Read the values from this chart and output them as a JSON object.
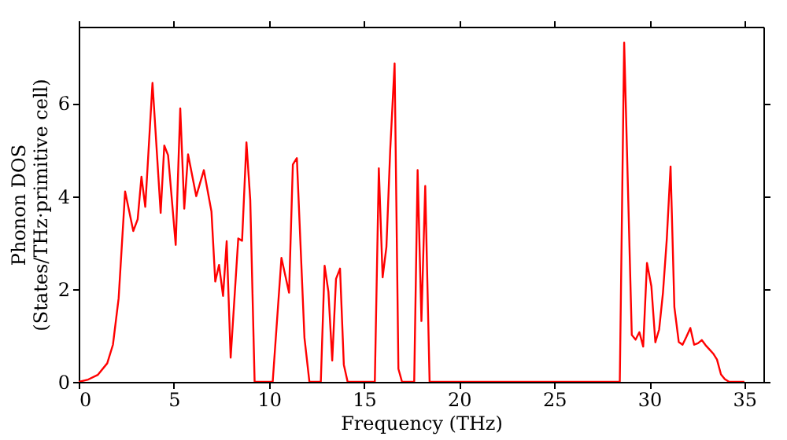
{
  "chart_data": {
    "type": "line",
    "xlabel": "Frequency (THz)",
    "ylabel": "Phonon DOS\n(States/THz·primitive cell)",
    "xlim": [
      0,
      36
    ],
    "xticks": [
      0,
      5,
      10,
      15,
      20,
      25,
      30,
      35
    ],
    "ylim": [
      0,
      7.65
    ],
    "yticks": [
      0,
      2,
      4,
      6
    ],
    "grid": false,
    "marker": "none",
    "line_style": "solid",
    "series": [
      {
        "color": "#ff0000",
        "x": [
          0,
          0.5,
          1.0,
          1.5,
          1.8,
          2.1,
          2.44,
          2.87,
          3.1,
          3.3,
          3.5,
          3.88,
          4.31,
          4.5,
          4.7,
          5.1,
          5.34,
          5.55,
          5.75,
          6.18,
          6.58,
          6.98,
          7.18,
          7.38,
          7.59,
          7.78,
          7.99,
          8.39,
          8.59,
          8.82,
          9.02,
          9.25,
          10.2,
          10.66,
          11.06,
          11.26,
          11.47,
          11.87,
          12.13,
          12.73,
          12.93,
          13.13,
          13.33,
          13.53,
          13.74,
          13.94,
          14.14,
          15.57,
          15.78,
          15.98,
          16.18,
          16.38,
          16.61,
          16.81,
          17.0,
          17.64,
          17.82,
          18.02,
          18.22,
          18.45,
          28.45,
          28.68,
          29.08,
          29.28,
          29.48,
          29.68,
          29.88,
          30.11,
          30.32,
          30.52,
          30.72,
          30.92,
          31.12,
          31.32,
          31.55,
          31.75,
          31.95,
          32.16,
          32.36,
          32.56,
          32.76,
          32.96,
          33.16,
          33.36,
          33.56,
          33.77,
          33.97,
          34.2,
          35.0
        ],
        "values": [
          0,
          0.05,
          0.15,
          0.4,
          0.8,
          1.8,
          4.1,
          3.25,
          3.5,
          4.42,
          3.77,
          6.44,
          3.64,
          5.09,
          4.88,
          2.95,
          5.89,
          3.73,
          4.9,
          4.0,
          4.56,
          3.67,
          2.16,
          2.52,
          1.85,
          3.03,
          0.52,
          3.09,
          3.04,
          5.16,
          3.92,
          0,
          0,
          2.67,
          1.92,
          4.68,
          4.82,
          0.95,
          0,
          0,
          2.5,
          1.94,
          0.46,
          2.22,
          2.44,
          0.37,
          0,
          0,
          4.6,
          2.25,
          2.91,
          5.0,
          6.86,
          0.28,
          0,
          0,
          4.56,
          1.31,
          4.22,
          0,
          0,
          7.31,
          1.01,
          0.91,
          1.07,
          0.76,
          2.56,
          2.06,
          0.85,
          1.13,
          1.92,
          3.07,
          4.64,
          1.61,
          0.86,
          0.8,
          0.97,
          1.16,
          0.8,
          0.83,
          0.9,
          0.79,
          0.7,
          0.61,
          0.48,
          0.16,
          0.06,
          0,
          0
        ]
      }
    ]
  }
}
